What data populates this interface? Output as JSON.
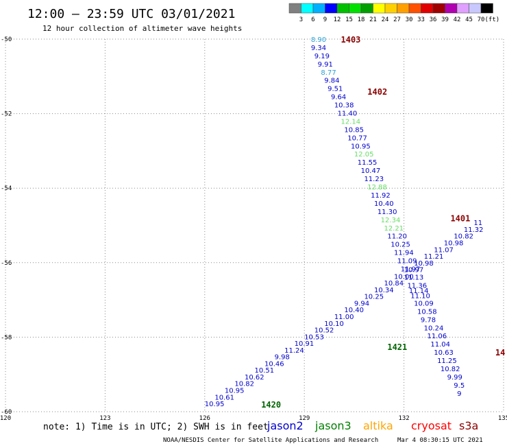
{
  "chart_data": {
    "type": "scatter",
    "title": "12:00 – 23:59 UTC 03/01/2021",
    "subtitle": "12 hour collection of altimeter wave heights",
    "xlim": [
      120,
      135
    ],
    "ylim": [
      -60,
      -50
    ],
    "x_ticks": [
      120,
      123,
      126,
      129,
      132,
      135
    ],
    "x_tick_labels": [
      "120",
      "123",
      "126",
      "129",
      "132",
      "135"
    ],
    "y_ticks": [
      -50,
      -52,
      -54,
      -56,
      -58,
      -60
    ],
    "y_tick_labels": [
      "-50",
      "-52",
      "-54",
      "-56",
      "-58",
      "-60"
    ],
    "grid": true,
    "color_scale": {
      "unit_label": "(ft)",
      "labels": [
        "3",
        "6",
        "9",
        "12",
        "15",
        "18",
        "21",
        "24",
        "27",
        "30",
        "33",
        "36",
        "39",
        "42",
        "45",
        "70"
      ],
      "colors": [
        "#808080",
        "#00ffff",
        "#00b0ff",
        "#0000ff",
        "#00c000",
        "#00e000",
        "#00a000",
        "#ffff00",
        "#ffd000",
        "#ffa000",
        "#ff5000",
        "#e00000",
        "#a00000",
        "#b000b0",
        "#e0a0ff",
        "#c8c8ff",
        "#000000"
      ]
    },
    "passes": [
      {
        "label": "1403",
        "color": "#8b0000",
        "x": 130.1,
        "y": -50.0
      },
      {
        "label": "1402",
        "color": "#8b0000",
        "x": 130.9,
        "y": -51.4
      },
      {
        "label": "1401",
        "color": "#8b0000",
        "x": 133.4,
        "y": -54.8
      },
      {
        "label": "14",
        "color": "#8b0000",
        "x": 134.75,
        "y": -58.4
      },
      {
        "label": "1421",
        "color": "#006400",
        "x": 131.5,
        "y": -58.25
      },
      {
        "label": "1420",
        "color": "#006400",
        "x": 127.7,
        "y": -59.8
      }
    ],
    "series": [
      {
        "color": "#0000cd",
        "points": [
          {
            "x": 129.2,
            "y": -50.0,
            "v": "8.90",
            "c": "#2a9fd6"
          },
          {
            "x": 129.2,
            "y": -50.22,
            "v": "9.34"
          },
          {
            "x": 129.3,
            "y": -50.44,
            "v": "9.19"
          },
          {
            "x": 129.4,
            "y": -50.66,
            "v": "9.91"
          },
          {
            "x": 129.5,
            "y": -50.88,
            "v": "8.77",
            "c": "#2a9fd6"
          },
          {
            "x": 129.6,
            "y": -51.1,
            "v": "9.84"
          },
          {
            "x": 129.7,
            "y": -51.32,
            "v": "9.51"
          },
          {
            "x": 129.8,
            "y": -51.54,
            "v": "9.64"
          },
          {
            "x": 129.9,
            "y": -51.76,
            "v": "10.38"
          },
          {
            "x": 130.0,
            "y": -51.98,
            "v": "11.40"
          },
          {
            "x": 130.1,
            "y": -52.2,
            "v": "12.14",
            "c": "#66dd66"
          },
          {
            "x": 130.2,
            "y": -52.42,
            "v": "10.85"
          },
          {
            "x": 130.3,
            "y": -52.64,
            "v": "10.77"
          },
          {
            "x": 130.4,
            "y": -52.86,
            "v": "10.95"
          },
          {
            "x": 130.5,
            "y": -53.08,
            "v": "12.05",
            "c": "#66dd66"
          },
          {
            "x": 130.6,
            "y": -53.3,
            "v": "11.55"
          },
          {
            "x": 130.7,
            "y": -53.52,
            "v": "10.47"
          },
          {
            "x": 130.8,
            "y": -53.74,
            "v": "11.23"
          },
          {
            "x": 130.9,
            "y": -53.96,
            "v": "12.88",
            "c": "#66dd66"
          },
          {
            "x": 131.0,
            "y": -54.18,
            "v": "11.92"
          },
          {
            "x": 131.1,
            "y": -54.4,
            "v": "10.40"
          },
          {
            "x": 131.2,
            "y": -54.62,
            "v": "11.30"
          },
          {
            "x": 131.3,
            "y": -54.84,
            "v": "12.34",
            "c": "#66dd66"
          },
          {
            "x": 131.4,
            "y": -55.06,
            "v": "12.21",
            "c": "#66dd66"
          },
          {
            "x": 131.5,
            "y": -55.28,
            "v": "11.20"
          },
          {
            "x": 131.6,
            "y": -55.5,
            "v": "10.25"
          },
          {
            "x": 131.7,
            "y": -55.72,
            "v": "11.94"
          },
          {
            "x": 131.8,
            "y": -55.94,
            "v": "11.09"
          },
          {
            "x": 131.9,
            "y": -56.16,
            "v": "11.97"
          },
          {
            "x": 132.0,
            "y": -56.38,
            "v": "11.13"
          },
          {
            "x": 132.1,
            "y": -56.6,
            "v": "11.36"
          },
          {
            "x": 132.15,
            "y": -56.74,
            "v": "11.14"
          },
          {
            "x": 132.2,
            "y": -56.88,
            "v": "11.10"
          },
          {
            "x": 132.3,
            "y": -57.08,
            "v": "10.09"
          },
          {
            "x": 132.4,
            "y": -57.3,
            "v": "10.58"
          },
          {
            "x": 132.5,
            "y": -57.52,
            "v": "9.78"
          },
          {
            "x": 132.6,
            "y": -57.74,
            "v": "10.24"
          },
          {
            "x": 132.7,
            "y": -57.96,
            "v": "11.06"
          },
          {
            "x": 132.8,
            "y": -58.18,
            "v": "11.04"
          },
          {
            "x": 132.9,
            "y": -58.4,
            "v": "10.63"
          },
          {
            "x": 133.0,
            "y": -58.62,
            "v": "11.25"
          },
          {
            "x": 133.1,
            "y": -58.84,
            "v": "10.82"
          },
          {
            "x": 133.3,
            "y": -59.06,
            "v": "9.99"
          },
          {
            "x": 133.5,
            "y": -59.28,
            "v": "9.5"
          },
          {
            "x": 133.6,
            "y": -59.5,
            "v": "9"
          }
        ]
      },
      {
        "color": "#0000cd",
        "points": [
          {
            "x": 126.0,
            "y": -59.78,
            "v": "10.95"
          },
          {
            "x": 126.3,
            "y": -59.6,
            "v": "10.61"
          },
          {
            "x": 126.6,
            "y": -59.42,
            "v": "10.95"
          },
          {
            "x": 126.9,
            "y": -59.24,
            "v": "10.82"
          },
          {
            "x": 127.2,
            "y": -59.06,
            "v": "10.62"
          },
          {
            "x": 127.5,
            "y": -58.88,
            "v": "10.51"
          },
          {
            "x": 127.8,
            "y": -58.7,
            "v": "10.46"
          },
          {
            "x": 128.1,
            "y": -58.52,
            "v": "9.98"
          },
          {
            "x": 128.4,
            "y": -58.34,
            "v": "11.24"
          },
          {
            "x": 128.7,
            "y": -58.16,
            "v": "10.91"
          },
          {
            "x": 129.0,
            "y": -57.98,
            "v": "10.53"
          },
          {
            "x": 129.3,
            "y": -57.8,
            "v": "10.52"
          },
          {
            "x": 129.6,
            "y": -57.62,
            "v": "10.10"
          },
          {
            "x": 129.9,
            "y": -57.44,
            "v": "11.00"
          },
          {
            "x": 130.2,
            "y": -57.26,
            "v": "10.40"
          },
          {
            "x": 130.5,
            "y": -57.08,
            "v": "9.94"
          },
          {
            "x": 130.8,
            "y": -56.9,
            "v": "10.25"
          },
          {
            "x": 131.1,
            "y": -56.72,
            "v": "10.34"
          },
          {
            "x": 131.4,
            "y": -56.54,
            "v": "10.84"
          },
          {
            "x": 131.7,
            "y": -56.36,
            "v": "10.00"
          },
          {
            "x": 132.0,
            "y": -56.18,
            "v": "10.97"
          },
          {
            "x": 132.3,
            "y": -56.0,
            "v": "10.98"
          },
          {
            "x": 132.6,
            "y": -55.82,
            "v": "11.21"
          },
          {
            "x": 132.9,
            "y": -55.64,
            "v": "11.07"
          },
          {
            "x": 133.2,
            "y": -55.46,
            "v": "10.98"
          },
          {
            "x": 133.5,
            "y": -55.28,
            "v": "10.82"
          },
          {
            "x": 133.8,
            "y": -55.1,
            "v": "11.32"
          },
          {
            "x": 134.1,
            "y": -54.92,
            "v": "11"
          }
        ]
      }
    ]
  },
  "footer": {
    "note": "note:  1) Time is in UTC;  2) SWH is in feet",
    "credit": "NOAA/NESDIS Center for Satellite Applications and Research",
    "timestamp": "Mar  4 08:30:15 UTC 2021",
    "satellites": [
      {
        "name": "jason2",
        "color": "#0000cd"
      },
      {
        "name": "jason3",
        "color": "#008000"
      },
      {
        "name": "altika",
        "color": "#ffa500"
      },
      {
        "name": "cryosat",
        "color": "#ff0000"
      },
      {
        "name": "s3a",
        "color": "#8b0000"
      }
    ]
  }
}
